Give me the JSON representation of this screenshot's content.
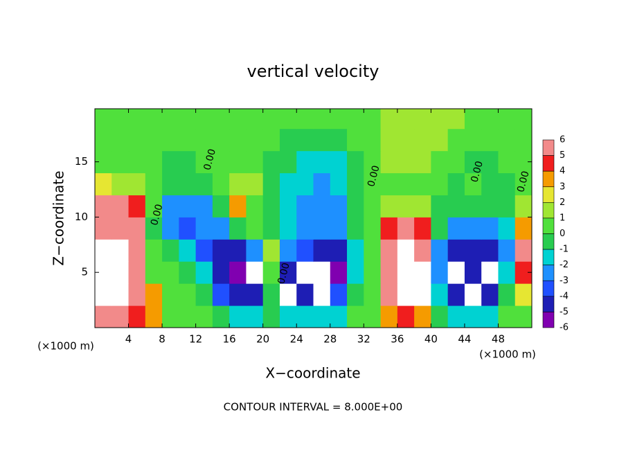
{
  "chart_data": {
    "type": "heatmap",
    "title": "vertical velocity",
    "xlabel": "X−coordinate",
    "ylabel": "Z−coordinate",
    "x_unit": "(×1000 m)",
    "y_unit": "(×1000 m)",
    "annotation": "CONTOUR INTERVAL = 8.000E+00",
    "xlim": [
      0,
      52
    ],
    "ylim": [
      0,
      19.8
    ],
    "xticks": [
      4,
      8,
      12,
      16,
      20,
      24,
      28,
      32,
      36,
      40,
      44,
      48
    ],
    "yticks": [
      5,
      10,
      15
    ],
    "x": [
      1,
      3,
      5,
      7,
      9,
      11,
      13,
      15,
      17,
      19,
      21,
      23,
      25,
      27,
      29,
      31,
      33,
      35,
      37,
      39,
      41,
      43,
      45,
      47,
      49,
      51
    ],
    "y": [
      1,
      3,
      5,
      7,
      9,
      11,
      13,
      15,
      17,
      19
    ],
    "z": [
      [
        5,
        5,
        4,
        3,
        0,
        0,
        0,
        -1,
        -2,
        -2,
        -1,
        -2,
        -2,
        -2,
        -1.5,
        0,
        0,
        3,
        4,
        3,
        -1,
        -2,
        -2,
        -1.5,
        0,
        0
      ],
      [
        7,
        7,
        6,
        3,
        0,
        0,
        -1,
        -3.5,
        -5,
        -5,
        -1,
        -6.5,
        -5,
        -6.5,
        -4,
        -1,
        0,
        6,
        7,
        6.5,
        -2,
        -5,
        -6.5,
        -5,
        -1,
        2
      ],
      [
        7,
        7,
        6,
        0,
        0,
        -0.5,
        -2,
        -5,
        -5.5,
        -6.5,
        0,
        -5,
        -6.5,
        -6.5,
        -5.5,
        -2,
        0,
        6,
        7,
        6.5,
        -3,
        -6.5,
        -5,
        -6.5,
        -2,
        4
      ],
      [
        7,
        7,
        6,
        0,
        -1,
        -2,
        -3.5,
        -4.5,
        -5,
        -3,
        1,
        -3,
        -4,
        -5,
        -5,
        -2,
        0,
        6,
        6.5,
        6,
        -3,
        -5,
        -5,
        -5,
        -3,
        5
      ],
      [
        6,
        6,
        5,
        -0.5,
        -3,
        -3.5,
        -3,
        -2.5,
        -1,
        0,
        -0.5,
        -2,
        -2.5,
        -3,
        -3,
        -1,
        0,
        4,
        5,
        4,
        -1,
        -3,
        -3,
        -3,
        -2,
        3
      ],
      [
        5,
        5,
        4,
        0,
        -2.5,
        -3,
        -3,
        -1,
        3,
        0,
        -1,
        -2,
        -2.5,
        -3,
        -2.5,
        -1,
        0,
        1,
        1.5,
        1,
        -0.5,
        -1,
        -0.5,
        -1,
        -0.5,
        1
      ],
      [
        2,
        1.5,
        1,
        0,
        -1,
        -1,
        -0.5,
        0,
        1,
        1,
        -0.5,
        -1.5,
        -2,
        -2.5,
        -2,
        -0.5,
        0.5,
        0.5,
        0.5,
        0.5,
        0,
        -0.5,
        0,
        -0.5,
        -0.5,
        0
      ],
      [
        0.5,
        0.5,
        0,
        0,
        -0.5,
        -0.5,
        0,
        0,
        0.5,
        0.5,
        -0.5,
        -1,
        -1.5,
        -2,
        -2,
        -0.5,
        0.5,
        1,
        1,
        1,
        0.5,
        0,
        -0.5,
        -0.5,
        0,
        0
      ],
      [
        0.5,
        0.5,
        0,
        0,
        0,
        0,
        0,
        0,
        0.5,
        0.5,
        0,
        -0.5,
        -0.5,
        -1,
        -1,
        0,
        0.5,
        1,
        1,
        1,
        1,
        0.5,
        0,
        0,
        0,
        0
      ],
      [
        0,
        0,
        0,
        0,
        0,
        0,
        0,
        0.5,
        0.5,
        0,
        0,
        0,
        0,
        0,
        0,
        0,
        0.5,
        1,
        1,
        1,
        1,
        1,
        0.5,
        0,
        0,
        0
      ]
    ],
    "colorbar": {
      "ticks": [
        6,
        5,
        4,
        3,
        2,
        1,
        0,
        -1,
        -2,
        -3,
        -4,
        -5,
        -6
      ],
      "colors": [
        "#f28a8a",
        "#f01e1e",
        "#f59b00",
        "#e6e632",
        "#a0e632",
        "#50e03c",
        "#28cc50",
        "#00d2d2",
        "#1e90ff",
        "#2050ff",
        "#1e1eb4",
        "#8000b0"
      ],
      "out_of_range_color": "#ffffff"
    },
    "contour_labels": [
      {
        "text": "0.00",
        "x": 7.4,
        "y": 10.2
      },
      {
        "text": "0.00",
        "x": 22.5,
        "y": 4.9
      },
      {
        "text": "0.00",
        "x": 13.7,
        "y": 15.2
      },
      {
        "text": "0.00",
        "x": 33.2,
        "y": 13.7
      },
      {
        "text": "0.00",
        "x": 45.5,
        "y": 14.1
      },
      {
        "text": "0.00",
        "x": 51,
        "y": 13.2
      }
    ]
  }
}
